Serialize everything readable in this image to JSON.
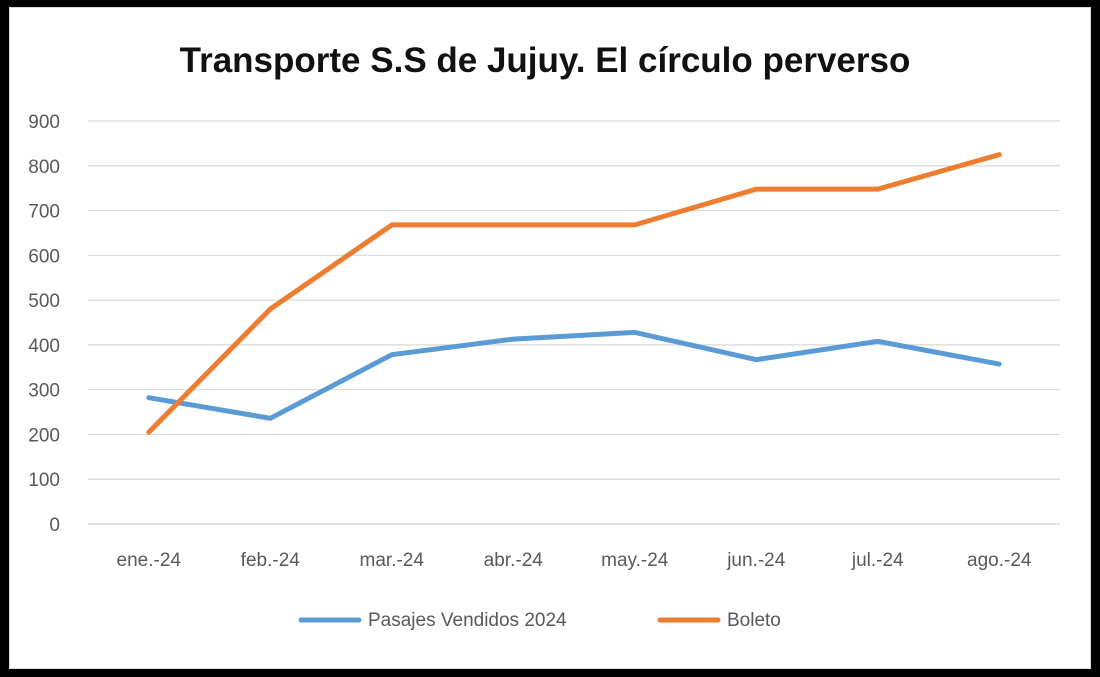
{
  "chart_data": {
    "type": "line",
    "title": "Transporte S.S de Jujuy. El círculo perverso",
    "categories": [
      "ene.-24",
      "feb.-24",
      "mar.-24",
      "abr.-24",
      "may.-24",
      "jun.-24",
      "jul.-24",
      "ago.-24"
    ],
    "series": [
      {
        "name": "Pasajes Vendidos 2024",
        "color": "#5b9bd5",
        "values": [
          282,
          236,
          378,
          413,
          428,
          367,
          408,
          357
        ]
      },
      {
        "name": "Boleto",
        "color": "#ed7d31",
        "values": [
          205,
          480,
          668,
          668,
          668,
          748,
          748,
          825
        ]
      }
    ],
    "ylim": [
      0,
      900
    ],
    "yticks": [
      "0",
      "100",
      "200",
      "300",
      "400",
      "500",
      "600",
      "700",
      "800",
      "900"
    ],
    "grid": true,
    "legend_position": "bottom",
    "xlabel": "",
    "ylabel": ""
  }
}
